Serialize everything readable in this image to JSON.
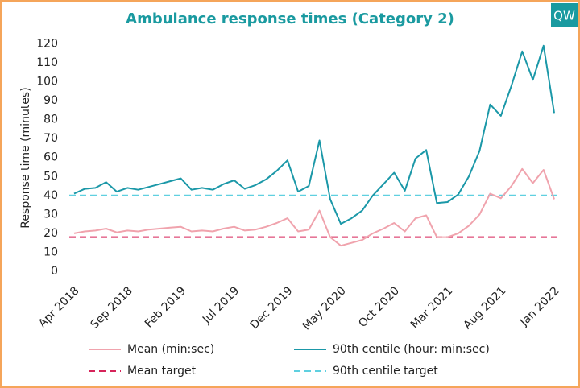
{
  "chart_data": {
    "type": "line",
    "title": "Ambulance response times (Category 2)",
    "logo": "QW",
    "y_label": "Response time (minutes)",
    "categories": [
      "Apr 2018",
      null,
      null,
      null,
      null,
      "Sep 2018",
      null,
      null,
      null,
      null,
      "Feb 2019",
      null,
      null,
      null,
      null,
      "Jul 2019",
      null,
      null,
      null,
      null,
      "Dec 2019",
      null,
      null,
      null,
      null,
      "May 2020",
      null,
      null,
      null,
      null,
      "Oct 2020",
      null,
      null,
      null,
      null,
      "Mar 2021",
      null,
      null,
      null,
      null,
      "Aug 2021",
      null,
      null,
      null,
      null,
      "Jan 2022"
    ],
    "series": [
      {
        "name": "Mean (min:sec)",
        "color": "#f0a3ad",
        "values": [
          20,
          21,
          21.5,
          22.5,
          20.5,
          21.5,
          21,
          22,
          22.5,
          23,
          23.5,
          21,
          21.5,
          21,
          22.5,
          23.5,
          21.5,
          22,
          23.5,
          25.5,
          28,
          21,
          22,
          32,
          18,
          13.5,
          15,
          16.5,
          20,
          22.5,
          25.5,
          21,
          28,
          29.5,
          18,
          18,
          20,
          24,
          30,
          41,
          38.5,
          45,
          54,
          46.5,
          53.5,
          38
        ]
      },
      {
        "name": "90th centile (hour: min:sec)",
        "color": "#1b98a8",
        "values": [
          41,
          43.5,
          44,
          47,
          42,
          44,
          43,
          44.5,
          46,
          47.5,
          49,
          43,
          44,
          43,
          46,
          48,
          43.5,
          45.5,
          48.5,
          53,
          58.5,
          42,
          45,
          69,
          38,
          25,
          28,
          32,
          40,
          46,
          52,
          42.5,
          59.5,
          64,
          36,
          36.5,
          40.5,
          50,
          63.5,
          88,
          82,
          98,
          116,
          101,
          119,
          83.5
        ]
      }
    ],
    "reference_lines": [
      {
        "name": "Mean target",
        "color": "#d6245a",
        "value": 18
      },
      {
        "name": "90th centile target",
        "color": "#5fd0e0",
        "value": 40
      }
    ],
    "ylim": [
      0,
      124
    ],
    "yticks": [
      0,
      10,
      20,
      30,
      40,
      50,
      60,
      70,
      80,
      90,
      100,
      110,
      120
    ],
    "grid": false
  }
}
